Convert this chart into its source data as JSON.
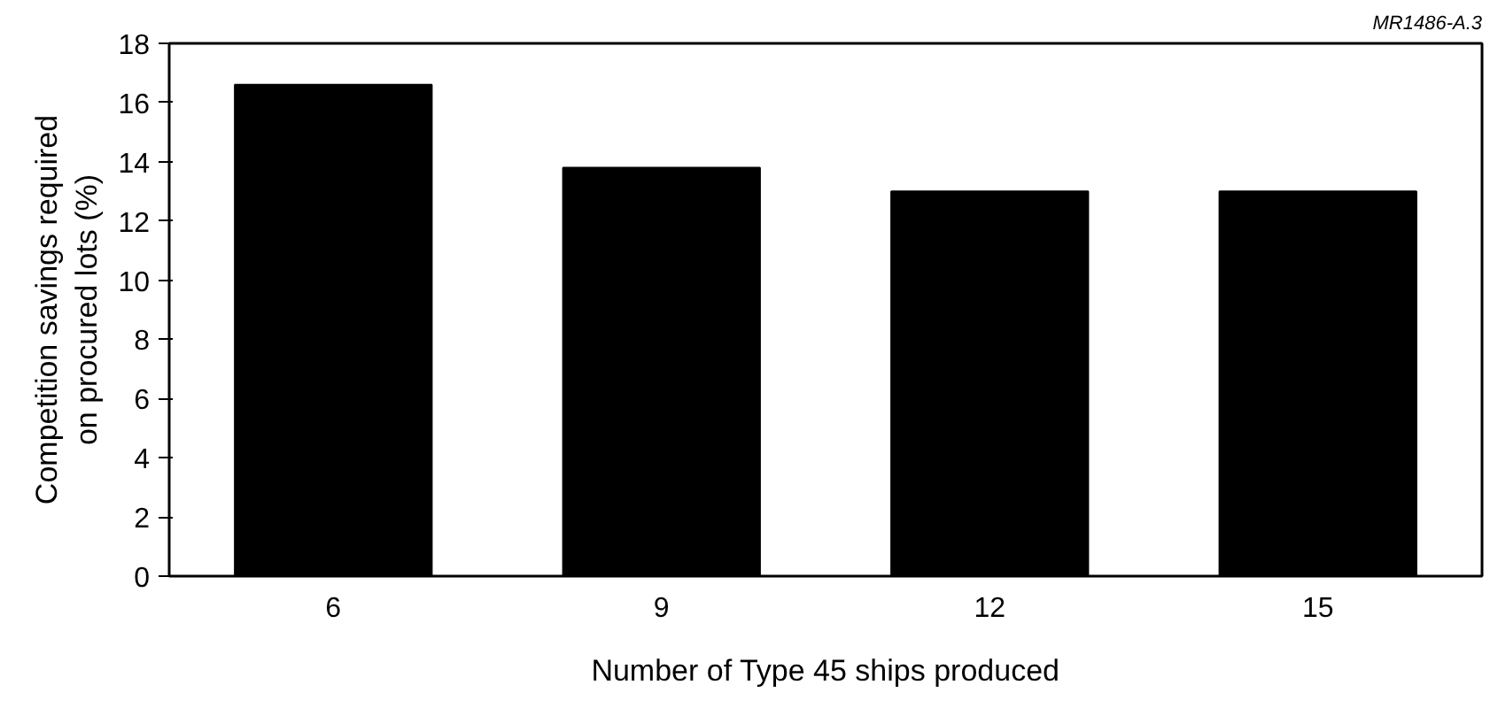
{
  "chart_data": {
    "type": "bar",
    "categories": [
      "6",
      "9",
      "12",
      "15"
    ],
    "values": [
      16.6,
      13.8,
      13.0,
      13.0
    ],
    "color": "#000000",
    "ylim": [
      0,
      18
    ],
    "yticks": [
      0,
      2,
      4,
      6,
      8,
      10,
      12,
      14,
      16,
      18
    ],
    "xlabel": "Number of Type 45 ships produced",
    "ylabel": "Competition savings required\non procured lots (%)",
    "annotations": [
      "MR1486-A.3"
    ],
    "grid": false
  }
}
